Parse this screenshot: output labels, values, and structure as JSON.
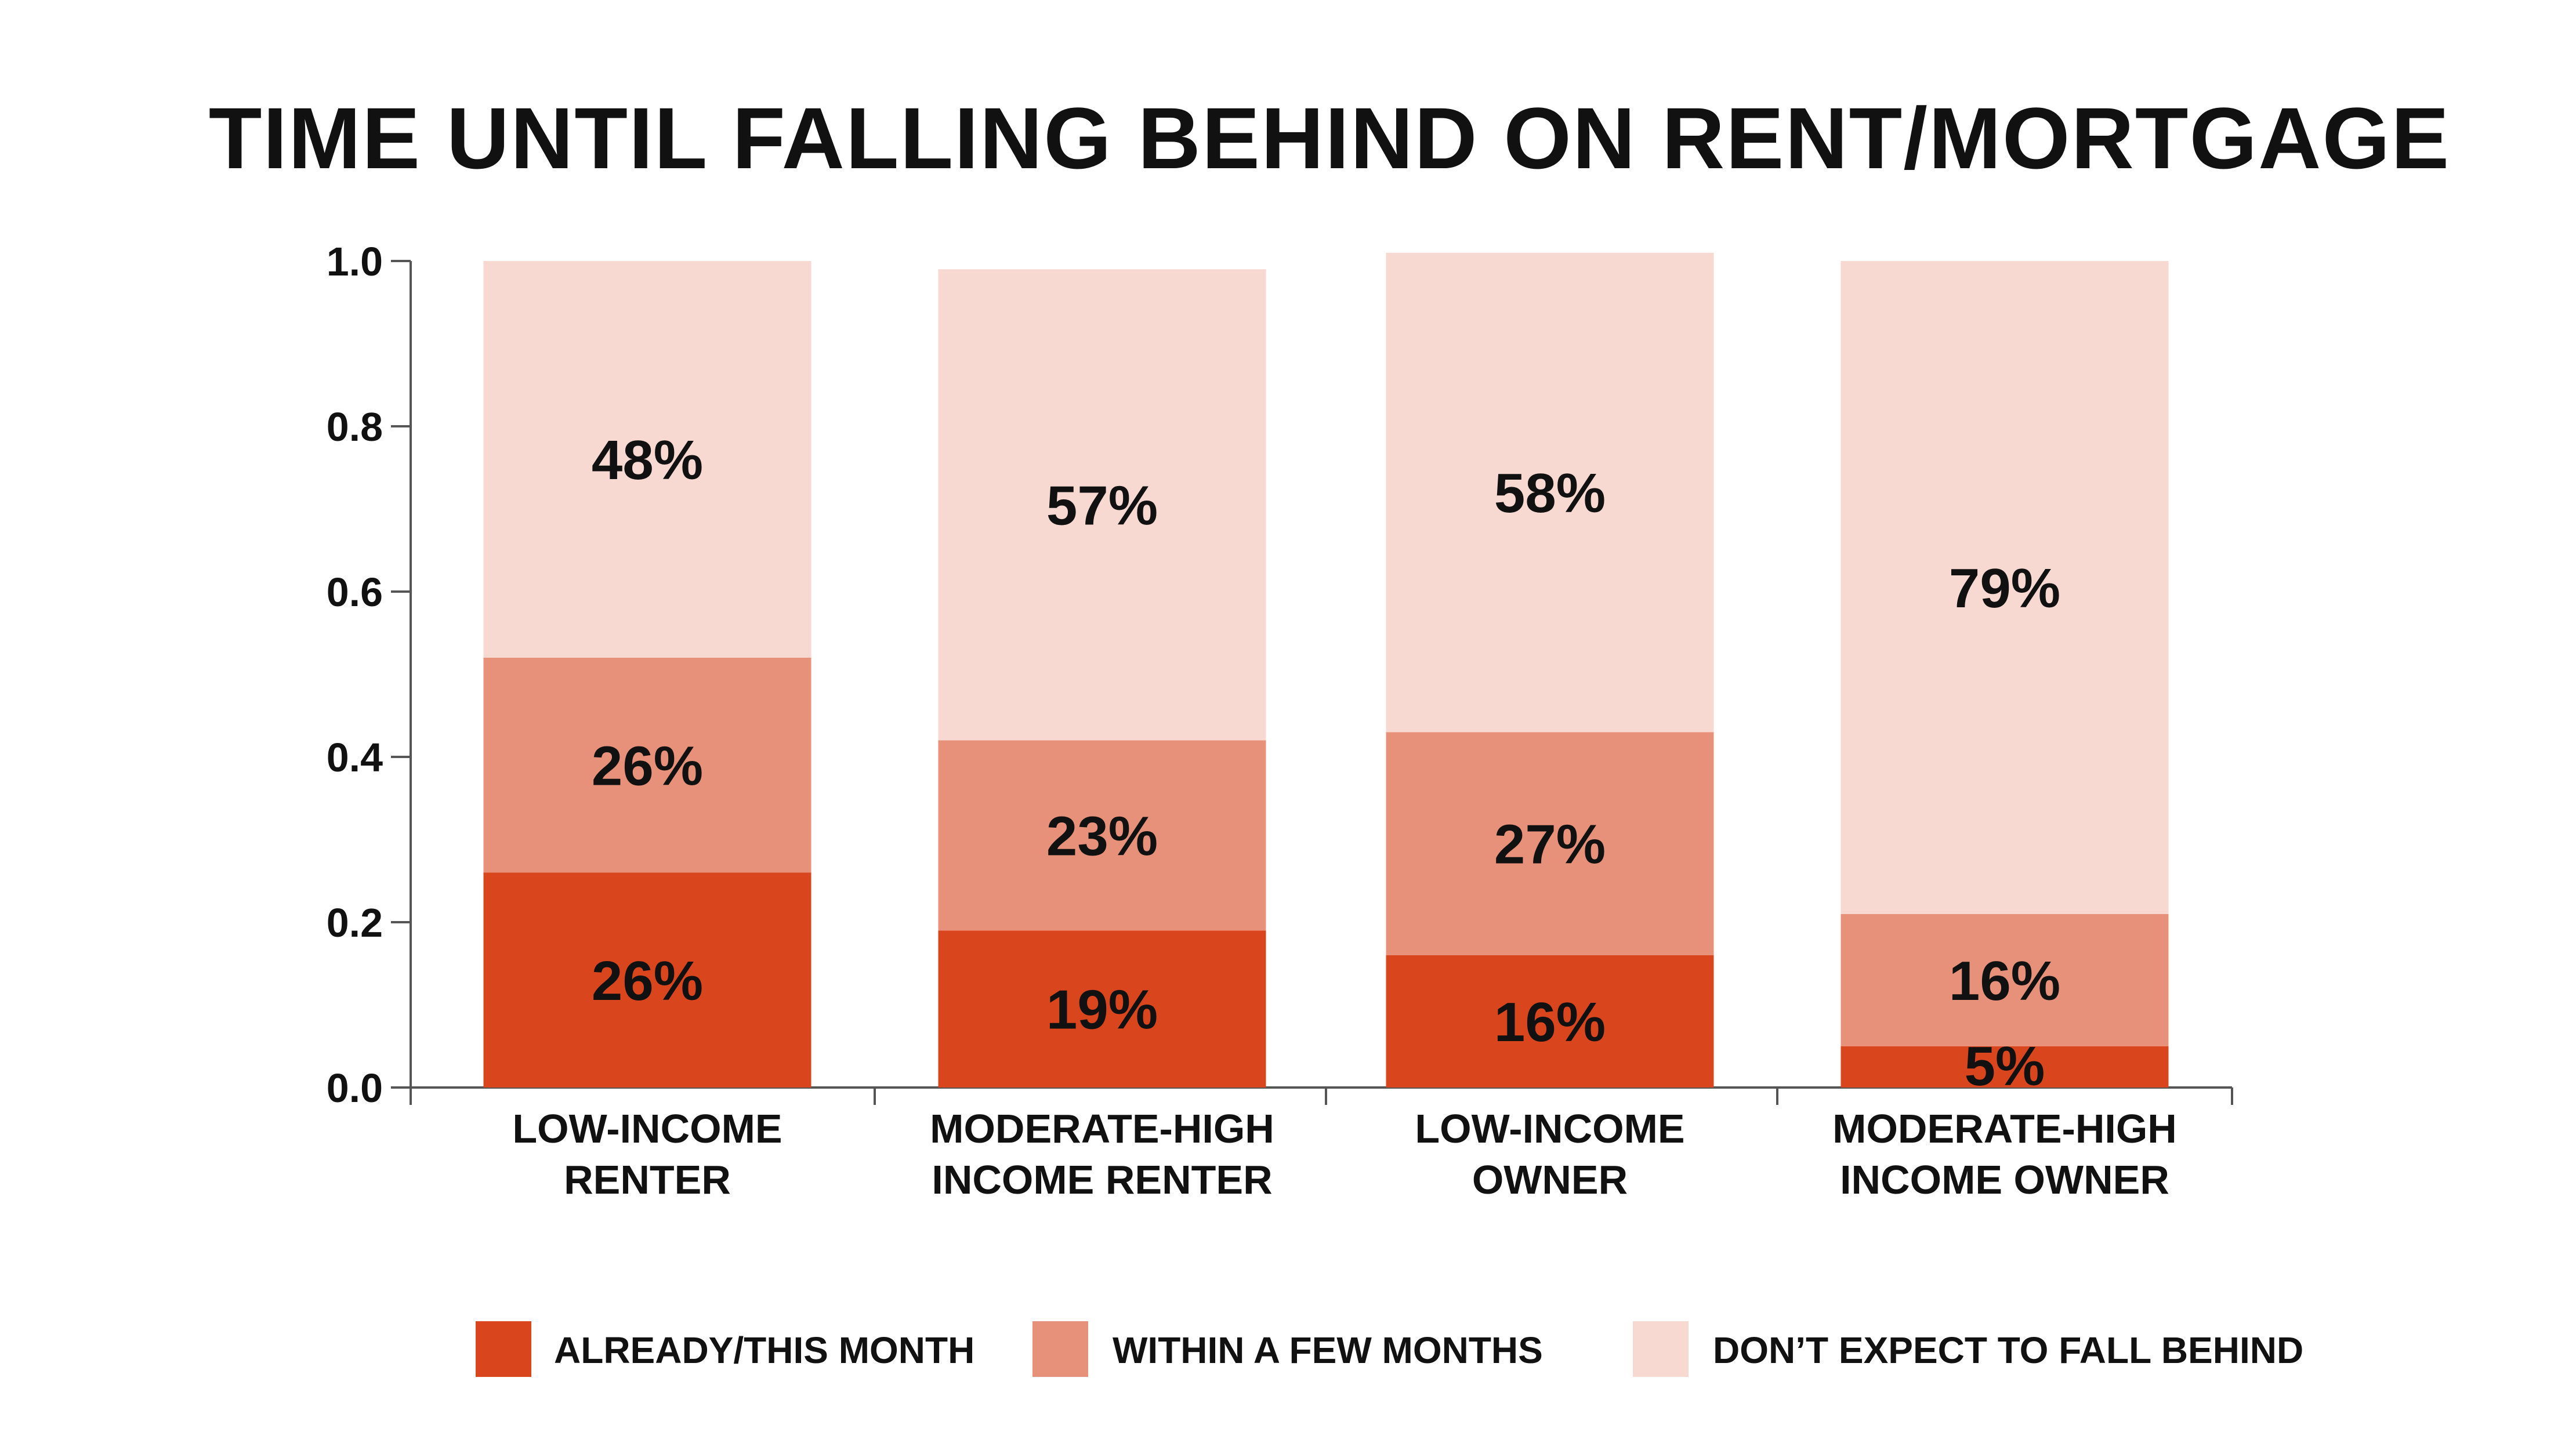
{
  "chart_data": {
    "type": "bar",
    "stacked": true,
    "title": "TIME UNTIL FALLING BEHIND ON RENT/MORTGAGE",
    "xlabel": "",
    "ylabel": "",
    "ylim": [
      0,
      1.0
    ],
    "yticks": [
      "0.0",
      "0.2",
      "0.4",
      "0.6",
      "0.8",
      "1.0"
    ],
    "ytick_values": [
      0,
      0.2,
      0.4,
      0.6,
      0.8,
      1.0
    ],
    "grid": false,
    "legend_position": "bottom",
    "categories": [
      [
        "LOW-INCOME",
        "RENTER"
      ],
      [
        "MODERATE-HIGH",
        "INCOME RENTER"
      ],
      [
        "LOW-INCOME",
        "OWNER"
      ],
      [
        "MODERATE-HIGH",
        "INCOME OWNER"
      ]
    ],
    "series": [
      {
        "name": "ALREADY/THIS MONTH",
        "color": "#d9461e",
        "values": [
          0.26,
          0.19,
          0.16,
          0.05
        ],
        "labels": [
          "26%",
          "19%",
          "16%",
          "5%"
        ]
      },
      {
        "name": "WITHIN A FEW MONTHS",
        "color": "#e8917a",
        "values": [
          0.26,
          0.23,
          0.27,
          0.16
        ],
        "labels": [
          "26%",
          "23%",
          "27%",
          "16%"
        ]
      },
      {
        "name": "DON’T EXPECT TO FALL BEHIND",
        "color": "#f7d9d2",
        "values": [
          0.48,
          0.57,
          0.58,
          0.79
        ],
        "labels": [
          "48%",
          "57%",
          "58%",
          "79%"
        ]
      }
    ]
  },
  "colors": {
    "axis": "#555555",
    "text": "#111111"
  }
}
